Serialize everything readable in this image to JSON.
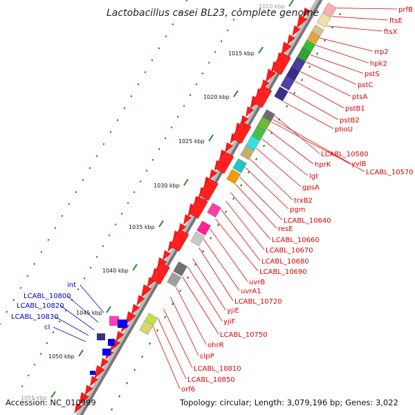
{
  "title": "Lactobacillus casei BL23, complete genome",
  "accession": "Accession: NC_010999",
  "topology": "Topology: circular; Length: 3,079,196 bp; Genes: 3,022",
  "colors": {
    "label_red": "#dd0000",
    "label_blue": "#0000cc",
    "tick_green": "#1f8a1f",
    "backbone": "#777777"
  },
  "kbp_ticks": [
    {
      "label": "1010 kbp",
      "major": true
    },
    {
      "label": "1015 kbp",
      "major": true
    },
    {
      "label": "1020 kbp",
      "major": true
    },
    {
      "label": "1025 kbp",
      "major": true
    },
    {
      "label": "1030 kbp",
      "major": true
    },
    {
      "label": "1035 kbp",
      "major": true
    },
    {
      "label": "1040 kbp",
      "major": true
    },
    {
      "label": "1045 kbp",
      "major": true
    },
    {
      "label": "1050 kbp",
      "major": true
    },
    {
      "label": "1055 kbp",
      "major": true
    }
  ],
  "genes_right": [
    "prfB",
    "ftsE",
    "ftsX",
    "rrp2",
    "hpk2",
    "pstS",
    "pstC",
    "ptsA",
    "pstB1",
    "pstB2",
    "phoU",
    "LCABL_10580",
    "yvlB",
    "LCABL_10570",
    "hprK",
    "lgt",
    "gpsA",
    "trxB2",
    "pgm",
    "LCABL_10640",
    "resE",
    "LCABL_10660",
    "LCABL_10670",
    "LCABL_10680",
    "LCABL_10690",
    "uvrB",
    "uvrA1",
    "LCABL_10720",
    "yjiE",
    "yjiF",
    "LCABL_10750",
    "ohrR",
    "clpP",
    "LCABL_10810",
    "LCABL_10850",
    "orf6"
  ],
  "genes_left": [
    "int",
    "LCABL_10800",
    "LCABL_10820",
    "LCABL_10830",
    "cI"
  ]
}
